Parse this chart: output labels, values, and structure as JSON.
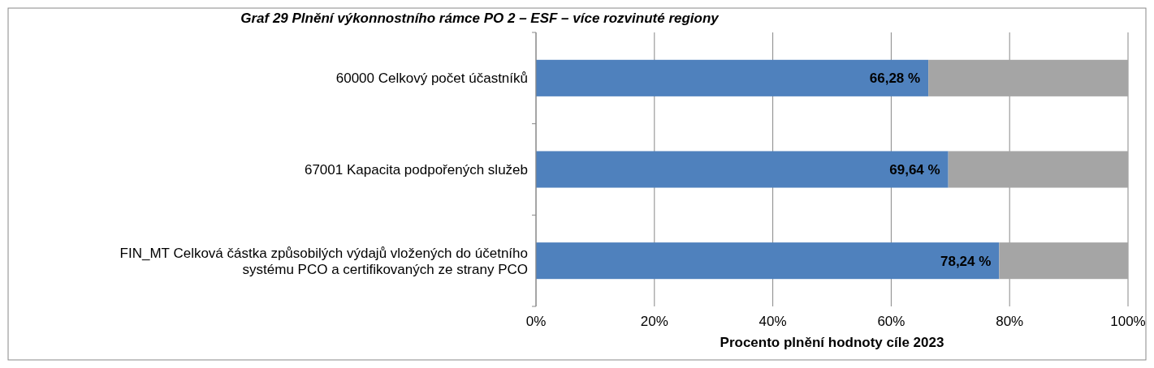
{
  "chart_data": {
    "type": "bar",
    "orientation": "horizontal",
    "stacked": true,
    "title": "Graf 29 Plnění výkonnostního rámce PO 2 – ESF – více rozvinuté regiony",
    "xlabel": "Procento plnění hodnoty cíle 2023",
    "categories": [
      "60000 Celkový počet účastníků",
      "67001 Kapacita podpořených služeb",
      "FIN_MT Celková částka způsobilých výdajů vložených do účetního\nsystému PCO a certifikovaných ze strany PCO"
    ],
    "series": [
      {
        "color": "#4f81bd",
        "values": [
          66.28,
          69.64,
          78.24
        ],
        "value_labels": [
          "66,28 %",
          "69,64 %",
          "78,24 %"
        ]
      },
      {
        "color": "#a5a5a5",
        "values": [
          33.72,
          30.36,
          21.76
        ]
      }
    ],
    "xlim": [
      0,
      100
    ],
    "xticks": [
      {
        "value": 0,
        "label": "0%"
      },
      {
        "value": 20,
        "label": "20%"
      },
      {
        "value": 40,
        "label": "40%"
      },
      {
        "value": 60,
        "label": "60%"
      },
      {
        "value": 80,
        "label": "80%"
      },
      {
        "value": 100,
        "label": "100%"
      }
    ],
    "grid": "x"
  }
}
